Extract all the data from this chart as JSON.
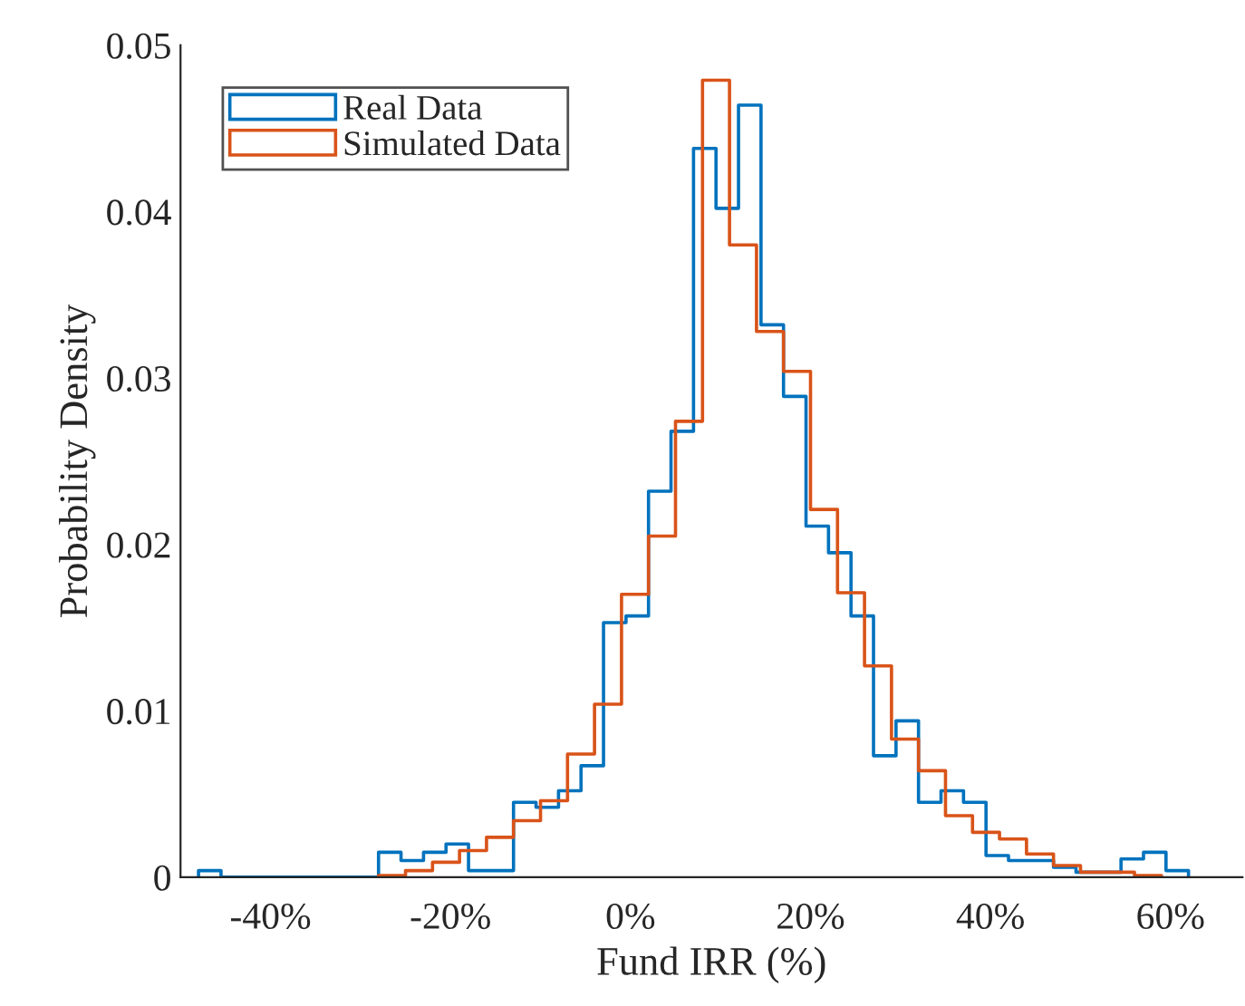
{
  "chart_data": {
    "type": "step",
    "xlabel": "Fund IRR (%)",
    "ylabel": "Probability Density",
    "xlim": [
      -50,
      68
    ],
    "xticks": [
      {
        "value": -40,
        "label": "-40%"
      },
      {
        "value": -20,
        "label": "-20%"
      },
      {
        "value": 0,
        "label": "0%"
      },
      {
        "value": 20,
        "label": "20%"
      },
      {
        "value": 40,
        "label": "40%"
      },
      {
        "value": 60,
        "label": "60%"
      }
    ],
    "ylim": [
      0,
      0.05
    ],
    "yticks": [
      0,
      0.01,
      0.02,
      0.03,
      0.04,
      0.05
    ],
    "legend": "top left",
    "grid": false,
    "line_style": "solid",
    "marker": "none",
    "series": [
      {
        "name": "Real Data",
        "color": "#0072bd",
        "x": [
          -48,
          -48,
          -45.5,
          -43,
          -40.5,
          -38,
          -35.5,
          -33,
          -30.5,
          -28,
          -25.5,
          -23,
          -20.5,
          -18,
          -15.5,
          -13,
          -10.5,
          -8,
          -5.5,
          -3,
          -0.5,
          2,
          4.5,
          7,
          9.5,
          12,
          14.5,
          17,
          19.5,
          22,
          24.5,
          27,
          29.5,
          32,
          34.5,
          37,
          39.5,
          42,
          44.5,
          47,
          49.5,
          52,
          54.5,
          57,
          59.5,
          62
        ],
        "values": [
          0,
          0.0004,
          0,
          0,
          0,
          0,
          0,
          0,
          0,
          0.0015,
          0.001,
          0.0015,
          0.002,
          0.0004,
          0.0004,
          0.0045,
          0.0042,
          0.0052,
          0.0067,
          0.0153,
          0.0157,
          0.0232,
          0.0268,
          0.0438,
          0.0402,
          0.0464,
          0.0332,
          0.0289,
          0.0211,
          0.0195,
          0.0157,
          0.0073,
          0.0094,
          0.0045,
          0.0052,
          0.0045,
          0.0013,
          0.001,
          0.001,
          0.0006,
          0.0003,
          0.0003,
          0.0011,
          0.0015,
          0.0004,
          0
        ]
      },
      {
        "name": "Simulated Data",
        "color": "#d95319",
        "x": [
          -28,
          -28,
          -25,
          -22,
          -19,
          -16,
          -13,
          -10,
          -7,
          -4,
          -1,
          2,
          5,
          8,
          11,
          14,
          17,
          20,
          23,
          26,
          29,
          32,
          35,
          38,
          41,
          44,
          47,
          50,
          53,
          56,
          59
        ],
        "values": [
          0,
          0.0001,
          0.0004,
          0.0009,
          0.0016,
          0.0024,
          0.0034,
          0.0046,
          0.0074,
          0.0104,
          0.017,
          0.0205,
          0.0274,
          0.0479,
          0.038,
          0.0328,
          0.0304,
          0.0221,
          0.0171,
          0.0127,
          0.0083,
          0.0064,
          0.0037,
          0.0027,
          0.0023,
          0.0014,
          0.0007,
          0.0003,
          0.0003,
          0.0001,
          0
        ]
      }
    ]
  }
}
